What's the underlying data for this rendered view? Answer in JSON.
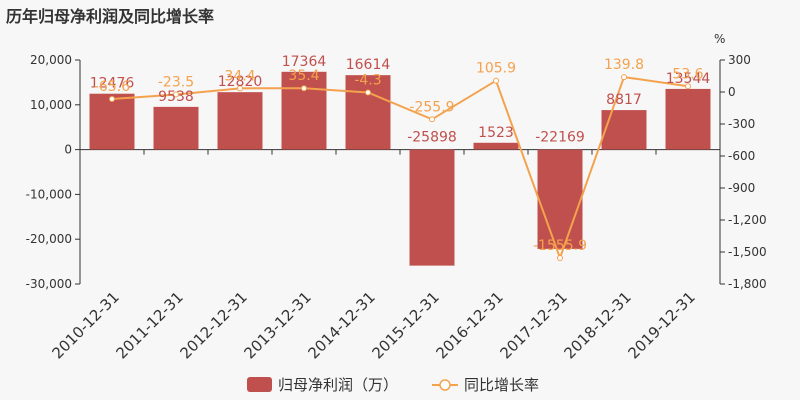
{
  "title": "历年归母净利润及同比增长率",
  "chart_data": {
    "type": "bar",
    "categories": [
      "2010-12-31",
      "2011-12-31",
      "2012-12-31",
      "2013-12-31",
      "2014-12-31",
      "2015-12-31",
      "2016-12-31",
      "2017-12-31",
      "2018-12-31",
      "2019-12-31"
    ],
    "series": [
      {
        "name": "归母净利润（万）",
        "type": "bar",
        "axis": "left",
        "color": "#c0504d",
        "values": [
          12476,
          9538,
          12820,
          17364,
          16614,
          -25898,
          1523,
          -22169,
          8817,
          13544
        ],
        "labels": [
          "12476",
          "9538",
          "12820",
          "17364",
          "16614",
          "-25898",
          "1523",
          "-22169",
          "8817",
          "13544"
        ]
      },
      {
        "name": "同比增长率",
        "type": "line",
        "axis": "right",
        "color": "#f4a24e",
        "values": [
          -65.6,
          -23.5,
          34.4,
          35.4,
          -4.3,
          -255.9,
          105.9,
          -1555.9,
          139.8,
          53.6
        ],
        "labels": [
          "-65.6",
          "-23.5",
          "34.4",
          "35.4",
          "-4.3",
          "-255.9",
          "105.9",
          "-1555.9",
          "139.8",
          "53.6"
        ]
      }
    ],
    "y_left": {
      "min": -30000,
      "max": 20000,
      "ticks": [
        20000,
        10000,
        0,
        -10000,
        -20000,
        -30000
      ],
      "tick_labels": [
        "20,000",
        "10,000",
        "0",
        "-10,000",
        "-20,000",
        "-30,000"
      ]
    },
    "y_right": {
      "unit": "%",
      "min": -1800,
      "max": 300,
      "ticks": [
        300,
        0,
        -300,
        -600,
        -900,
        -1200,
        -1500,
        -1800
      ],
      "tick_labels": [
        "300",
        "0",
        "-300",
        "-600",
        "-900",
        "-1,200",
        "-1,500",
        "-1,800"
      ]
    },
    "grid": false,
    "legend": "bottom"
  }
}
